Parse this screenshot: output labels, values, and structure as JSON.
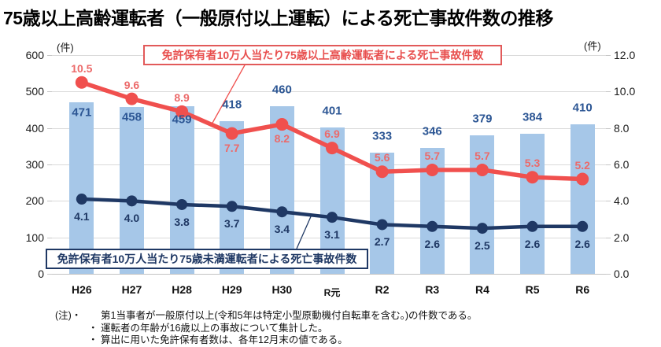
{
  "chart_data": {
    "type": "combo-bar-line",
    "title": "75歳以上高齢運転者（一般原付以上運転）による死亡事故件数の推移",
    "categories": [
      "H26",
      "H27",
      "H28",
      "H29",
      "H30",
      "R元",
      "R2",
      "R3",
      "R4",
      "R5",
      "R6"
    ],
    "bar_series": {
      "name": "75歳以上高齢運転者による死亡事故件数",
      "axis": "left",
      "color": "#a6c7e8",
      "label_color": "#2c5694",
      "values": [
        471,
        458,
        459,
        418,
        460,
        401,
        333,
        346,
        379,
        384,
        410
      ],
      "label_position": [
        "inside",
        "inside",
        "inside",
        "above",
        "above",
        "above",
        "above",
        "above",
        "above",
        "above",
        "above"
      ]
    },
    "line_series": [
      {
        "name": "免許保有者10万人当たり75歳以上高齢運転者による死亡事故件数",
        "axis": "right",
        "color": "#f0504e",
        "label_color": "#ec6a6a",
        "values": [
          10.5,
          9.6,
          8.9,
          7.7,
          8.2,
          6.9,
          5.6,
          5.7,
          5.7,
          5.3,
          5.2
        ],
        "labels": [
          "10.5",
          "9.6",
          "8.9",
          "7.7",
          "8.2",
          "6.9",
          "5.6",
          "5.7",
          "5.7",
          "5.3",
          "5.2"
        ],
        "label_position": [
          "above",
          "above",
          "above",
          "below",
          "below",
          "above",
          "above",
          "above",
          "above",
          "above",
          "above"
        ]
      },
      {
        "name": "免許保有者10万人当たり75歳未満運転者による死亡事故件数",
        "axis": "right",
        "color": "#1f3864",
        "label_color": "#1f3864",
        "values": [
          4.1,
          4.0,
          3.8,
          3.7,
          3.4,
          3.1,
          2.7,
          2.6,
          2.5,
          2.6,
          2.6
        ],
        "labels": [
          "4.1",
          "4.0",
          "3.8",
          "3.7",
          "3.4",
          "3.1",
          "2.7",
          "2.6",
          "2.5",
          "2.6",
          "2.6"
        ],
        "label_position": [
          "below",
          "below",
          "below",
          "below",
          "below",
          "below",
          "below",
          "below",
          "below",
          "below",
          "below"
        ]
      }
    ],
    "left_axis": {
      "unit": "(件)",
      "min": 0,
      "max": 600,
      "ticks": [
        "600",
        "500",
        "400",
        "300",
        "200",
        "100",
        "0"
      ]
    },
    "right_axis": {
      "unit": "(件)",
      "min": 0,
      "max": 12,
      "ticks": [
        "12.0",
        "10.0",
        "8.0",
        "6.0",
        "4.0",
        "2.0",
        "0.0"
      ]
    },
    "grid": true,
    "legend_position": "callout-boxes"
  },
  "legend": {
    "over75": "免許保有者10万人当たり75歳以上高齢運転者による死亡事故件数",
    "under75": "免許保有者10万人当たり75歳未満運転者による死亡事故件数"
  },
  "footnotes": [
    {
      "marker": "(注)・",
      "text": "第1当事者が一般原付以上(令和5年は特定小型原動機付自転車を含む。)の件数である。"
    },
    {
      "marker": "・",
      "text": "運転者の年齢が16歳以上の事故について集計した。"
    },
    {
      "marker": "・",
      "text": "算出に用いた免許保有者数は、各年12月末の値である。"
    }
  ]
}
